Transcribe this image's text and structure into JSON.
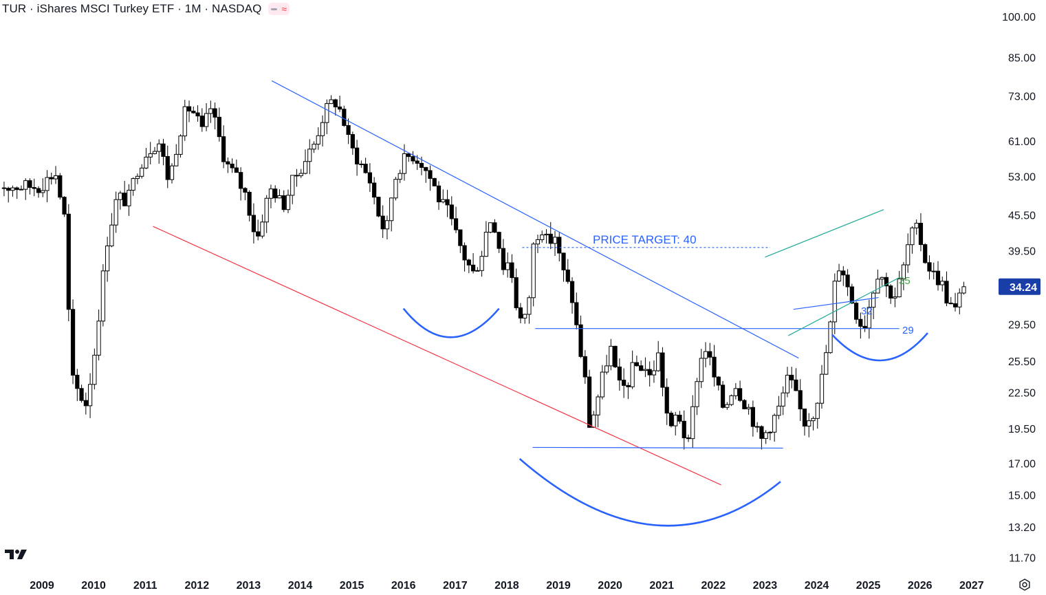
{
  "header": {
    "title": "TUR · iShares MSCI Turkey ETF · 1M · NASDAQ",
    "pill_dash_icon": "minus-icon",
    "pill_wave_icon": "approx-wave-icon"
  },
  "colors": {
    "up": "#ffffff",
    "down": "#000000",
    "outline": "#000000",
    "trend_blue": "#2962ff",
    "trend_red": "#f23645",
    "channel_green": "#22ab94",
    "label_green": "#43a047",
    "price_badge_bg": "#1a3ea8"
  },
  "chart_data": {
    "type": "candlestick",
    "title": "TUR · iShares MSCI Turkey ETF · 1M · NASDAQ",
    "scale": "log",
    "ylim": [
      11,
      104
    ],
    "xlim": [
      2009.0,
      2027.4
    ],
    "y_ticks": [
      "100.00",
      "85.00",
      "73.00",
      "61.00",
      "53.00",
      "45.50",
      "39.50",
      "34.24",
      "29.50",
      "25.50",
      "22.50",
      "19.50",
      "17.00",
      "15.00",
      "13.20",
      "11.70"
    ],
    "y_tick_values": [
      100,
      85,
      73,
      61,
      53,
      45.5,
      39.5,
      34.24,
      29.5,
      25.5,
      22.5,
      19.5,
      17,
      15,
      13.2,
      11.7
    ],
    "x_ticks": [
      "2009",
      "2010",
      "2011",
      "2012",
      "2013",
      "2014",
      "2015",
      "2016",
      "2017",
      "2018",
      "2019",
      "2020",
      "2021",
      "2022",
      "2023",
      "2024",
      "2025",
      "2026",
      "2027"
    ],
    "last_price": "34.24",
    "series_anchors": [
      [
        2009.0,
        51
      ],
      [
        2009.3,
        54
      ],
      [
        2009.5,
        44
      ],
      [
        2009.6,
        24
      ],
      [
        2009.75,
        22.5
      ],
      [
        2009.9,
        21.5
      ],
      [
        2010.05,
        26
      ],
      [
        2010.3,
        41
      ],
      [
        2010.5,
        49
      ],
      [
        2010.7,
        48
      ],
      [
        2010.9,
        55
      ],
      [
        2011.1,
        59
      ],
      [
        2011.3,
        61
      ],
      [
        2011.5,
        52
      ],
      [
        2011.7,
        63
      ],
      [
        2011.85,
        70
      ],
      [
        2012.0,
        68
      ],
      [
        2012.15,
        63
      ],
      [
        2012.3,
        70
      ],
      [
        2012.45,
        63
      ],
      [
        2012.6,
        56
      ],
      [
        2012.8,
        53
      ],
      [
        2013.0,
        49
      ],
      [
        2013.2,
        41
      ],
      [
        2013.35,
        47
      ],
      [
        2013.5,
        51
      ],
      [
        2013.7,
        47
      ],
      [
        2013.9,
        52
      ],
      [
        2014.1,
        56
      ],
      [
        2014.3,
        60
      ],
      [
        2014.5,
        68
      ],
      [
        2014.7,
        72
      ],
      [
        2014.85,
        68
      ],
      [
        2015.0,
        60
      ],
      [
        2015.2,
        56
      ],
      [
        2015.4,
        52
      ],
      [
        2015.55,
        46
      ],
      [
        2015.7,
        42
      ],
      [
        2015.85,
        52
      ],
      [
        2016.0,
        56
      ],
      [
        2016.2,
        58
      ],
      [
        2016.4,
        56
      ],
      [
        2016.6,
        52
      ],
      [
        2016.75,
        48
      ],
      [
        2016.9,
        46
      ],
      [
        2017.1,
        41
      ],
      [
        2017.25,
        38
      ],
      [
        2017.4,
        36
      ],
      [
        2017.55,
        39
      ],
      [
        2017.7,
        45
      ],
      [
        2017.85,
        43
      ],
      [
        2017.95,
        37
      ],
      [
        2018.1,
        38
      ],
      [
        2018.25,
        31
      ],
      [
        2018.35,
        29.5
      ],
      [
        2018.45,
        31
      ],
      [
        2018.55,
        40
      ],
      [
        2018.7,
        44
      ],
      [
        2018.85,
        40
      ],
      [
        2018.95,
        43
      ],
      [
        2019.1,
        37
      ],
      [
        2019.3,
        33
      ],
      [
        2019.45,
        27
      ],
      [
        2019.55,
        24
      ],
      [
        2019.65,
        19.5
      ],
      [
        2019.8,
        22
      ],
      [
        2019.95,
        25
      ],
      [
        2020.05,
        27
      ],
      [
        2020.2,
        23
      ],
      [
        2020.35,
        23
      ],
      [
        2020.5,
        25
      ],
      [
        2020.7,
        25
      ],
      [
        2020.85,
        23.5
      ],
      [
        2020.95,
        27
      ],
      [
        2021.1,
        22
      ],
      [
        2021.2,
        19
      ],
      [
        2021.35,
        21
      ],
      [
        2021.55,
        18
      ],
      [
        2021.75,
        25
      ],
      [
        2021.9,
        27
      ],
      [
        2022.05,
        24
      ],
      [
        2022.25,
        21
      ],
      [
        2022.45,
        23.5
      ],
      [
        2022.6,
        22
      ],
      [
        2022.75,
        21
      ],
      [
        2022.95,
        18.5
      ],
      [
        2023.1,
        19.5
      ],
      [
        2023.3,
        21
      ],
      [
        2023.5,
        24
      ],
      [
        2023.65,
        22
      ],
      [
        2023.8,
        20
      ],
      [
        2024.0,
        21
      ],
      [
        2024.15,
        24
      ],
      [
        2024.3,
        29
      ],
      [
        2024.4,
        35
      ],
      [
        2024.5,
        38
      ],
      [
        2024.65,
        34
      ],
      [
        2024.8,
        31
      ],
      [
        2024.95,
        29
      ],
      [
        2025.1,
        33
      ],
      [
        2025.25,
        37
      ],
      [
        2025.4,
        34
      ],
      [
        2025.55,
        33
      ],
      [
        2025.7,
        36
      ],
      [
        2025.85,
        42
      ],
      [
        2026.0,
        43
      ],
      [
        2026.15,
        38
      ],
      [
        2026.3,
        36
      ],
      [
        2026.45,
        35
      ],
      [
        2026.6,
        32
      ],
      [
        2026.75,
        31
      ],
      [
        2026.85,
        34.24
      ]
    ],
    "annotations": [
      {
        "text": "PRICE TARGET: 40",
        "value": 40
      },
      {
        "text": "35",
        "value": 35
      },
      {
        "text": "32",
        "value": 32
      },
      {
        "text": "29",
        "value": 29
      }
    ]
  }
}
